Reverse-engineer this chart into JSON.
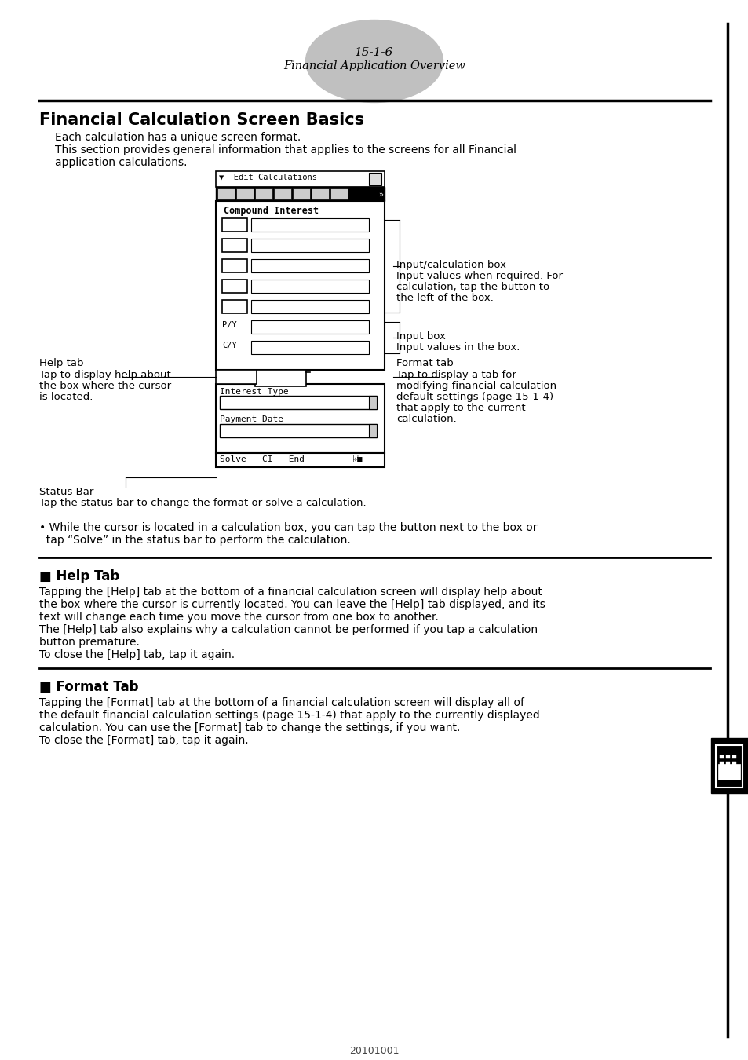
{
  "page_number": "15-1-6",
  "page_subtitle": "Financial Application Overview",
  "section_title": "Financial Calculation Screen Basics",
  "intro_text": [
    "Each calculation has a unique screen format.",
    "This section provides general information that applies to the screens for all Financial",
    "application calculations."
  ],
  "annotation_input_calc": "Input/calculation box",
  "annotation_input_calc2": "Input values when required. For",
  "annotation_input_calc3": "calculation, tap the button to",
  "annotation_input_calc4": "the left of the box.",
  "annotation_input_box": "Input box",
  "annotation_input_box2": "Input values in the box.",
  "annotation_help_tab": "Help tab",
  "annotation_help_tab2": "Tap to display help about",
  "annotation_help_tab3": "the box where the cursor",
  "annotation_help_tab4": "is located.",
  "annotation_format_tab": "Format tab",
  "annotation_format_tab2": "Tap to display a tab for",
  "annotation_format_tab3": "modifying financial calculation",
  "annotation_format_tab4": "default settings (page 15-1-4)",
  "annotation_format_tab5": "that apply to the current",
  "annotation_format_tab6": "calculation.",
  "status_bar_label": "Status Bar",
  "status_bar_desc": "Tap the status bar to change the format or solve a calculation.",
  "bullet_line1": "• While the cursor is located in a calculation box, you can tap the button next to the box or",
  "bullet_line2": "  tap “Solve” in the status bar to perform the calculation.",
  "help_tab_title": "■ Help Tab",
  "help_tab_text": [
    "Tapping the [Help] tab at the bottom of a financial calculation screen will display help about",
    "the box where the cursor is currently located. You can leave the [Help] tab displayed, and its",
    "text will change each time you move the cursor from one box to another.",
    "The [Help] tab also explains why a calculation cannot be performed if you tap a calculation",
    "button premature.",
    "To close the [Help] tab, tap it again."
  ],
  "format_tab_title": "■ Format Tab",
  "format_tab_text": [
    "Tapping the [Format] tab at the bottom of a financial calculation screen will display all of",
    "the default financial calculation settings (page 15-1-4) that apply to the currently displayed",
    "calculation. You can use the [Format] tab to change the settings, if you want.",
    "To close the [Format] tab, tap it again."
  ],
  "footer_text": "20101001",
  "bg_color": "#ffffff",
  "gray_ellipse_color": "#c0c0c0"
}
